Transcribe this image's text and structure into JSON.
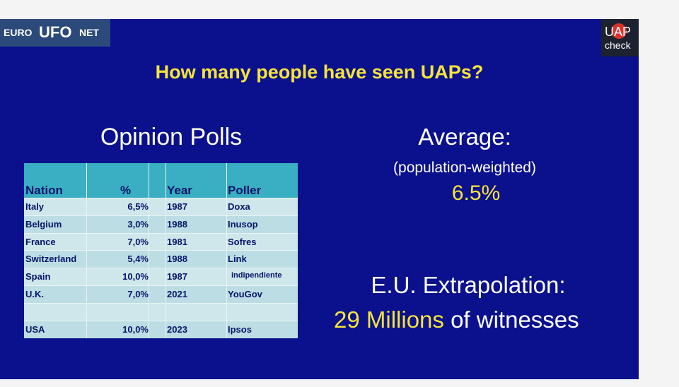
{
  "logo_left": {
    "text_1": "EURO",
    "text_2": "UFO",
    "text_3": "NET"
  },
  "logo_right": {
    "text_1": "UAP",
    "text_2": "check"
  },
  "title": "How many people have seen UAPs?",
  "left": {
    "heading": "Opinion Polls",
    "table": {
      "header": [
        "Nation",
        "%",
        "Year",
        "Poller"
      ],
      "rows": [
        [
          "Italy",
          "6,5%",
          "1987",
          "Doxa"
        ],
        [
          "Belgium",
          "3,0%",
          "1988",
          "Inusop"
        ],
        [
          "France",
          "7,0%",
          "1981",
          "Sofres"
        ],
        [
          "Switzerland",
          "5,4%",
          "1988",
          "Link"
        ],
        [
          "Spain",
          "10,0%",
          "1987",
          "indipendiente"
        ],
        [
          "U.K.",
          "7,0%",
          "2021",
          "YouGov"
        ],
        [
          "USA",
          "10,0%",
          "2023",
          "Ipsos"
        ]
      ]
    }
  },
  "right": {
    "average_label": "Average:",
    "average_note": "(population-weighted)",
    "average_value": "6.5%",
    "extrapolation_label": "E.U. Extrapolation:",
    "extrapolation_value": "29 Millions",
    "extrapolation_suffix": "of witnesses"
  }
}
